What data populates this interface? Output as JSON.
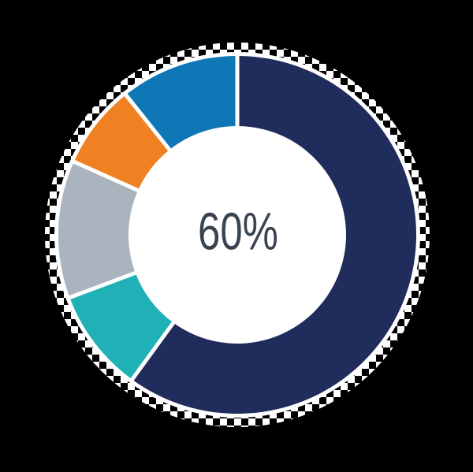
{
  "page": {
    "background": "#000000"
  },
  "chart_data": {
    "type": "pie",
    "subtype": "donut",
    "title": "",
    "center_label": "60%",
    "center_label_color": "#3A4450",
    "ring_background": "#FFFFFF",
    "separator_color": "#FFFFFF",
    "direction": "clockwise",
    "start_angle_deg": 0,
    "legend": "none",
    "segments": [
      {
        "name": "navy",
        "value": 60.0,
        "color": "#1F2C5C"
      },
      {
        "name": "teal",
        "value": 9.3,
        "color": "#1FB1B5"
      },
      {
        "name": "gray",
        "value": 12.4,
        "color": "#A9B4BF"
      },
      {
        "name": "orange",
        "value": 7.6,
        "color": "#F08122"
      },
      {
        "name": "blue",
        "value": 10.7,
        "color": "#0F77B5"
      }
    ]
  }
}
